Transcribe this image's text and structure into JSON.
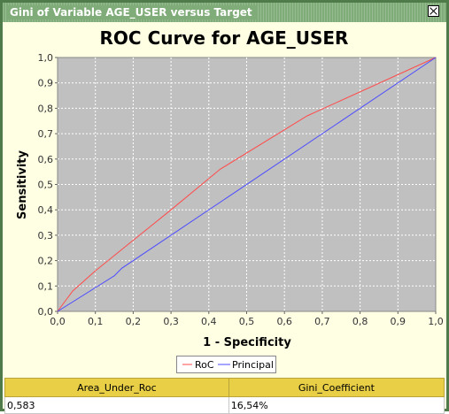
{
  "window": {
    "title": "Gini of Variable AGE_USER versus Target"
  },
  "chart_data": {
    "type": "line",
    "title": "ROC Curve for AGE_USER",
    "xlabel": "1 - Specificity",
    "ylabel": "Sensitivity",
    "xlim": [
      0,
      1
    ],
    "ylim": [
      0,
      1
    ],
    "ticks": [
      "0,0",
      "0,1",
      "0,2",
      "0,3",
      "0,4",
      "0,5",
      "0,6",
      "0,7",
      "0,8",
      "0,9",
      "1,0"
    ],
    "grid": true,
    "legend_position": "bottom",
    "series": [
      {
        "name": "RoC",
        "color": "#ff4b4b",
        "x": [
          0,
          0.02,
          0.04,
          0.1,
          0.15,
          0.3,
          0.43,
          0.66,
          1.0
        ],
        "y": [
          0,
          0.04,
          0.08,
          0.16,
          0.22,
          0.4,
          0.56,
          0.77,
          1.0
        ]
      },
      {
        "name": "Principal",
        "color": "#4b4bff",
        "x": [
          0,
          0.15,
          0.17,
          1.0
        ],
        "y": [
          0,
          0.14,
          0.17,
          1.0
        ]
      }
    ]
  },
  "stats_table": {
    "headers": [
      "Area_Under_Roc",
      "Gini_Coefficient"
    ],
    "values": [
      "0,583",
      "16,54%"
    ]
  }
}
